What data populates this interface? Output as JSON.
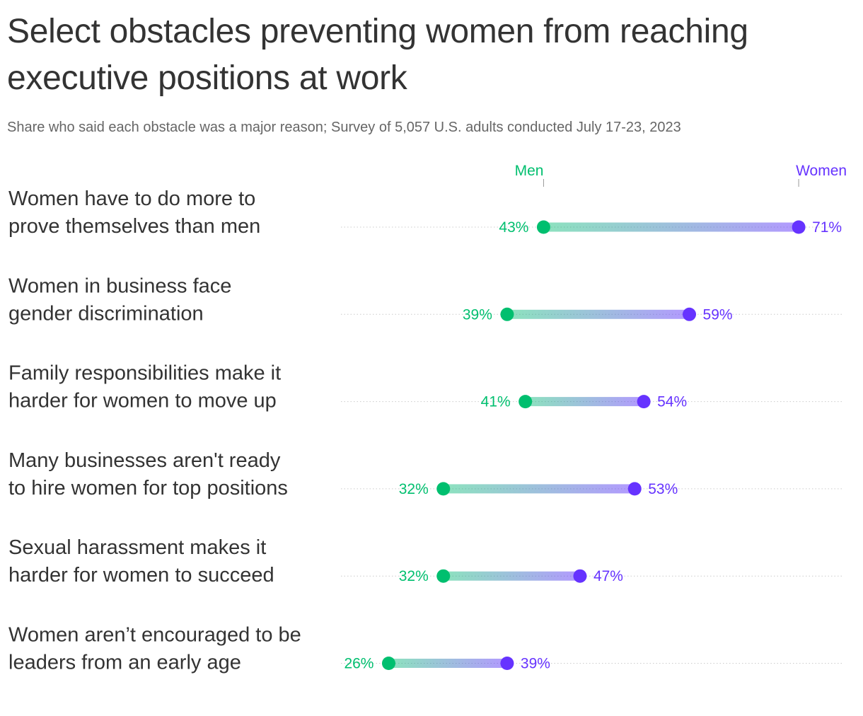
{
  "title": "Select obstacles preventing women from reaching executive positions at work",
  "subtitle": "Share who said each obstacle was a major reason; Survey of 5,057 U.S. adults conducted July 17-23, 2023",
  "colors": {
    "men": "#00bf6f",
    "women": "#6633ff",
    "text": "#333333",
    "subtitle": "#666666",
    "gridline": "#cccccc"
  },
  "chart_data": {
    "type": "dumbbell",
    "title": "Select obstacles preventing women from reaching executive positions at work",
    "subtitle": "Share who said each obstacle was a major reason; Survey of 5,057 U.S. adults conducted July 17-23, 2023",
    "legend": [
      "Men",
      "Women"
    ],
    "legend_placement": "top",
    "value_suffix": "%",
    "categories": [
      [
        "Women have to do more to",
        "prove themselves than men"
      ],
      [
        "Women in business face",
        "gender discrimination"
      ],
      [
        "Family responsibilities make it",
        "harder for women to move up"
      ],
      [
        "Many businesses aren't ready",
        "to hire women for top positions"
      ],
      [
        "Sexual harassment makes it",
        "harder for women to succeed"
      ],
      [
        "Women aren’t encouraged to be",
        "leaders from an early age"
      ]
    ],
    "series": [
      {
        "name": "Men",
        "values": [
          43,
          39,
          41,
          32,
          32,
          26
        ]
      },
      {
        "name": "Women",
        "values": [
          71,
          59,
          54,
          53,
          47,
          39
        ]
      }
    ],
    "xlim": [
      20,
      75
    ],
    "grid": true
  }
}
